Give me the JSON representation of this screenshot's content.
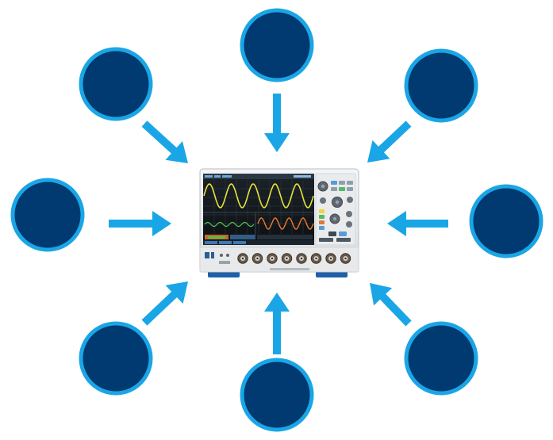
{
  "diagram": {
    "center": {
      "device": "oscilloscope",
      "channel_count": 8,
      "waveforms": [
        "sine",
        "sine",
        "sine"
      ]
    },
    "nodes": [
      {
        "id": "node-top"
      },
      {
        "id": "node-top-right"
      },
      {
        "id": "node-right"
      },
      {
        "id": "node-bottom-right"
      },
      {
        "id": "node-bottom"
      },
      {
        "id": "node-bottom-left"
      },
      {
        "id": "node-left"
      },
      {
        "id": "node-top-left"
      }
    ],
    "edges": [
      {
        "from": "node-top",
        "to": "center"
      },
      {
        "from": "node-top-right",
        "to": "center"
      },
      {
        "from": "node-right",
        "to": "center"
      },
      {
        "from": "node-bottom-right",
        "to": "center"
      },
      {
        "from": "node-bottom",
        "to": "center"
      },
      {
        "from": "node-bottom-left",
        "to": "center"
      },
      {
        "from": "node-left",
        "to": "center"
      },
      {
        "from": "node-top-left",
        "to": "center"
      }
    ],
    "colors": {
      "node_fill": "#003a70",
      "node_ring": "#1aa6e6",
      "arrow": "#1aa6e6"
    }
  }
}
